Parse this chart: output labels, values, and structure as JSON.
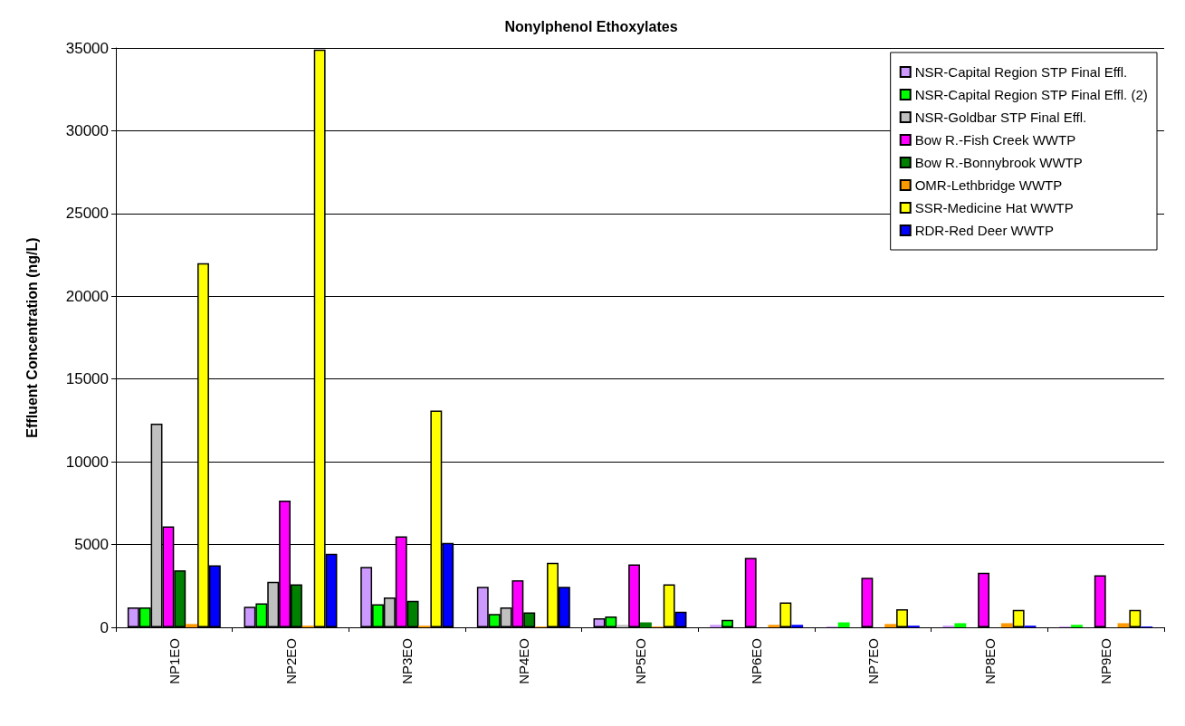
{
  "chart_data": {
    "type": "bar",
    "title": "Nonylphenol Ethoxylates",
    "ylabel": "Effluent Concentration (ng/L)",
    "categories": [
      "NP1EO",
      "NP2EO",
      "NP3EO",
      "NP4EO",
      "NP5EO",
      "NP6EO",
      "NP7EO",
      "NP8EO",
      "NP9EO"
    ],
    "series": [
      {
        "name": "NSR-Capital Region STP Final Effl.",
        "color": "#cc99ff",
        "values": [
          1200,
          1250,
          3650,
          2450,
          550,
          150,
          50,
          100,
          50
        ]
      },
      {
        "name": "NSR-Capital Region STP Final Effl. (2)",
        "color": "#00ff00",
        "values": [
          1200,
          1450,
          1400,
          800,
          650,
          450,
          300,
          250,
          150
        ]
      },
      {
        "name": "NSR-Goldbar STP Final Effl.",
        "color": "#c0c0c0",
        "values": [
          12300,
          2750,
          1800,
          1200,
          150,
          null,
          null,
          null,
          null
        ]
      },
      {
        "name": "Bow R.-Fish Creek WWTP",
        "color": "#ff00ff",
        "values": [
          6100,
          7650,
          5500,
          2850,
          3800,
          4200,
          3000,
          3300,
          3150
        ]
      },
      {
        "name": "Bow R.-Bonnybrook WWTP",
        "color": "#008000",
        "values": [
          3450,
          2600,
          1600,
          900,
          300,
          null,
          null,
          null,
          null
        ]
      },
      {
        "name": "OMR-Lethbridge WWTP",
        "color": "#ff9900",
        "values": [
          200,
          100,
          100,
          50,
          50,
          150,
          200,
          250,
          250
        ]
      },
      {
        "name": "SSR-Medicine Hat WWTP",
        "color": "#ffff00",
        "values": [
          22000,
          34900,
          13100,
          3900,
          2600,
          1500,
          1100,
          1050,
          1050
        ]
      },
      {
        "name": "RDR-Red Deer WWTP",
        "color": "#0000ff",
        "values": [
          3750,
          4450,
          5100,
          2450,
          950,
          150,
          100,
          100,
          50
        ]
      }
    ],
    "ylim": [
      0,
      35000
    ],
    "yticks": [
      0,
      5000,
      10000,
      15000,
      20000,
      25000,
      30000,
      35000
    ],
    "grid": "y",
    "legend": "top right"
  }
}
